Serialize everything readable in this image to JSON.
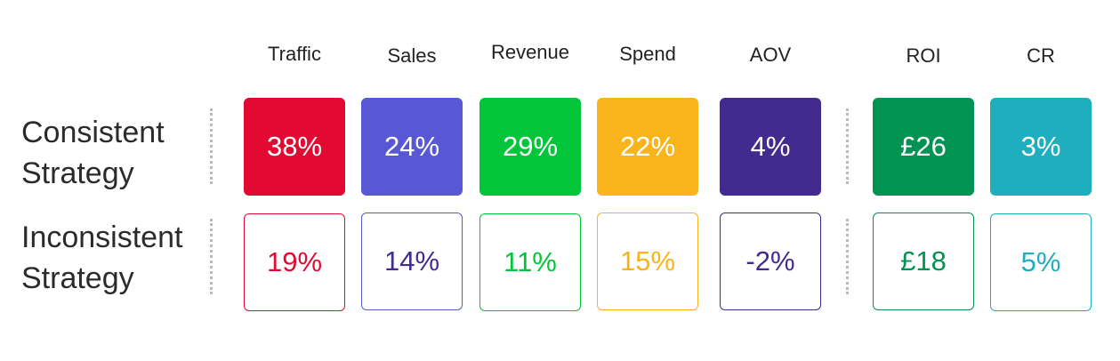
{
  "chart_data": {
    "type": "table",
    "columns": [
      "Traffic",
      "Sales",
      "Revenue",
      "Spend",
      "AOV",
      "ROI",
      "CR"
    ],
    "rows": [
      {
        "label_line1": "Consistent",
        "label_line2": "Strategy",
        "values": [
          "38%",
          "24%",
          "29%",
          "22%",
          "4%",
          "£26",
          "3%"
        ]
      },
      {
        "label_line1": "Inconsistent",
        "label_line2": "Strategy",
        "values": [
          "19%",
          "14%",
          "11%",
          "15%",
          "-2%",
          "£18",
          "5%"
        ]
      }
    ],
    "colors": [
      "#e20a32",
      "#5858d6",
      "#02c53a",
      "#f9b41c",
      "#422a8e",
      "#019352",
      "#1eaebd"
    ],
    "inconsistent_text_colors": [
      "#e20a32",
      "#422a8e",
      "#02c53a",
      "#f9b41c",
      "#422a8e",
      "#019352",
      "#1eaebd"
    ]
  }
}
